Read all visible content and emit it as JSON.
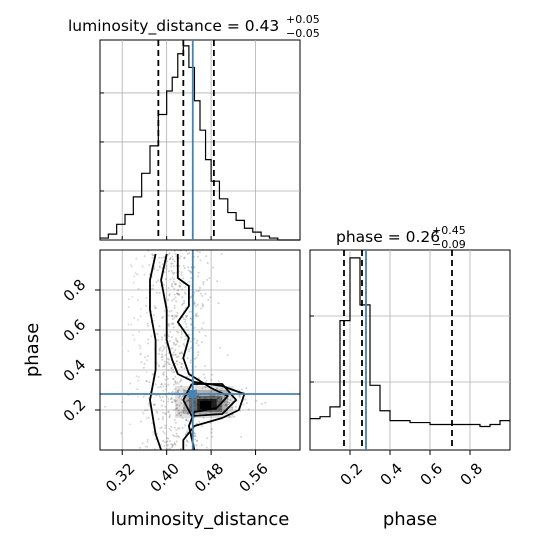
{
  "chart_data": [
    {
      "type": "histogram",
      "panel": "top-left",
      "parameter": "luminosity_distance",
      "title": "luminosity_distance = 0.43",
      "title_plus": "+0.05",
      "title_minus": "−0.05",
      "xlim": [
        0.28,
        0.64
      ],
      "ylim": [
        0,
        1
      ],
      "grid": true,
      "bin_edges": [
        0.28,
        0.295,
        0.31,
        0.325,
        0.34,
        0.355,
        0.37,
        0.385,
        0.4,
        0.41,
        0.42,
        0.43,
        0.44,
        0.45,
        0.46,
        0.47,
        0.48,
        0.495,
        0.51,
        0.525,
        0.54,
        0.555,
        0.57,
        0.585,
        0.6,
        0.615,
        0.64
      ],
      "counts": [
        0.01,
        0.03,
        0.08,
        0.13,
        0.22,
        0.34,
        0.48,
        0.64,
        0.76,
        0.83,
        0.95,
        0.99,
        0.88,
        0.71,
        0.56,
        0.41,
        0.3,
        0.21,
        0.14,
        0.1,
        0.06,
        0.04,
        0.02,
        0.01,
        0.0,
        0.0
      ],
      "quantile_lines": [
        0.385,
        0.43,
        0.485
      ],
      "truth": 0.447,
      "yticks_visible": false
    },
    {
      "type": "histogram",
      "panel": "bottom-right",
      "parameter": "phase",
      "title": "phase = 0.26",
      "title_plus": "+0.45",
      "title_minus": "−0.09",
      "xlim": [
        0.0,
        1.0
      ],
      "ylim": [
        0,
        1
      ],
      "xlabel": "phase",
      "xticks": [
        0.2,
        0.4,
        0.6,
        0.8
      ],
      "xtick_labels": [
        "0.2",
        "0.4",
        "0.6",
        "0.8"
      ],
      "grid": true,
      "bin_edges": [
        0.0,
        0.05,
        0.1,
        0.15,
        0.2,
        0.25,
        0.3,
        0.35,
        0.4,
        0.5,
        0.6,
        0.7,
        0.8,
        0.85,
        0.9,
        0.95,
        1.0
      ],
      "counts": [
        0.16,
        0.17,
        0.22,
        0.66,
        0.98,
        0.74,
        0.33,
        0.2,
        0.15,
        0.14,
        0.13,
        0.13,
        0.13,
        0.12,
        0.13,
        0.15
      ],
      "quantile_lines": [
        0.17,
        0.26,
        0.71
      ],
      "truth": 0.28,
      "yticks_visible": false
    },
    {
      "type": "scatter",
      "panel": "bottom-left",
      "xlabel": "luminosity_distance",
      "ylabel": "phase",
      "xlim": [
        0.28,
        0.64
      ],
      "ylim": [
        0.0,
        1.0
      ],
      "xticks": [
        0.32,
        0.4,
        0.48,
        0.56
      ],
      "xtick_labels": [
        "0.32",
        "0.40",
        "0.48",
        "0.56"
      ],
      "yticks": [
        0.2,
        0.4,
        0.6,
        0.8
      ],
      "ytick_labels": [
        "0.2",
        "0.4",
        "0.6",
        "0.8"
      ],
      "grid": true,
      "truth": [
        0.447,
        0.28
      ],
      "density_core": {
        "x": [
          0.44,
          0.5
        ],
        "y": [
          0.19,
          0.27
        ]
      },
      "contours": [
        [
          [
            0.38,
            0.98
          ],
          [
            0.37,
            0.85
          ],
          [
            0.37,
            0.7
          ],
          [
            0.38,
            0.55
          ],
          [
            0.38,
            0.4
          ],
          [
            0.37,
            0.25
          ],
          [
            0.38,
            0.08
          ],
          [
            0.39,
            0.0
          ]
        ],
        [
          [
            0.4,
            0.98
          ],
          [
            0.39,
            0.85
          ],
          [
            0.4,
            0.7
          ],
          [
            0.4,
            0.55
          ],
          [
            0.41,
            0.45
          ],
          [
            0.42,
            0.38
          ],
          [
            0.45,
            0.34
          ],
          [
            0.5,
            0.32
          ],
          [
            0.54,
            0.28
          ],
          [
            0.53,
            0.2
          ],
          [
            0.5,
            0.16
          ],
          [
            0.45,
            0.12
          ],
          [
            0.43,
            0.05
          ],
          [
            0.43,
            0.0
          ]
        ],
        [
          [
            0.42,
            0.98
          ],
          [
            0.42,
            0.86
          ],
          [
            0.44,
            0.82
          ],
          [
            0.44,
            0.72
          ],
          [
            0.42,
            0.64
          ],
          [
            0.44,
            0.56
          ],
          [
            0.43,
            0.46
          ],
          [
            0.44,
            0.38
          ],
          [
            0.48,
            0.31
          ],
          [
            0.51,
            0.27
          ],
          [
            0.49,
            0.21
          ],
          [
            0.45,
            0.19
          ],
          [
            0.44,
            0.12
          ],
          [
            0.45,
            0.0
          ]
        ]
      ]
    }
  ],
  "colors": {
    "truth": "#4682b4",
    "line": "#000000",
    "grid": "#b0b0b0",
    "points": "#808080"
  }
}
